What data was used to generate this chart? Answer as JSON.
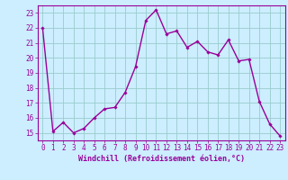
{
  "x": [
    0,
    1,
    2,
    3,
    4,
    5,
    6,
    7,
    8,
    9,
    10,
    11,
    12,
    13,
    14,
    15,
    16,
    17,
    18,
    19,
    20,
    21,
    22,
    23
  ],
  "y": [
    22.0,
    15.1,
    15.7,
    15.0,
    15.3,
    16.0,
    16.6,
    16.7,
    17.7,
    19.4,
    22.5,
    23.2,
    21.6,
    21.8,
    20.7,
    21.1,
    20.4,
    20.2,
    21.2,
    19.8,
    19.9,
    17.1,
    15.6,
    14.8
  ],
  "line_color": "#990099",
  "marker": "D",
  "markersize": 1.8,
  "linewidth": 1.0,
  "bg_color": "#cceeff",
  "grid_color": "#99cccc",
  "xlabel": "Windchill (Refroidissement éolien,°C)",
  "xlabel_color": "#990099",
  "xlabel_fontsize": 6.0,
  "ytick_labels": [
    "15",
    "16",
    "17",
    "18",
    "19",
    "20",
    "21",
    "22",
    "23"
  ],
  "ytick_values": [
    15,
    16,
    17,
    18,
    19,
    20,
    21,
    22,
    23
  ],
  "xtick_labels": [
    "0",
    "1",
    "2",
    "3",
    "4",
    "5",
    "6",
    "7",
    "8",
    "9",
    "10",
    "11",
    "12",
    "13",
    "14",
    "15",
    "16",
    "17",
    "18",
    "19",
    "20",
    "21",
    "22",
    "23"
  ],
  "ylim": [
    14.5,
    23.5
  ],
  "xlim": [
    -0.5,
    23.5
  ],
  "tick_color": "#990099",
  "tick_fontsize": 5.5,
  "axes_spine_color": "#990099"
}
